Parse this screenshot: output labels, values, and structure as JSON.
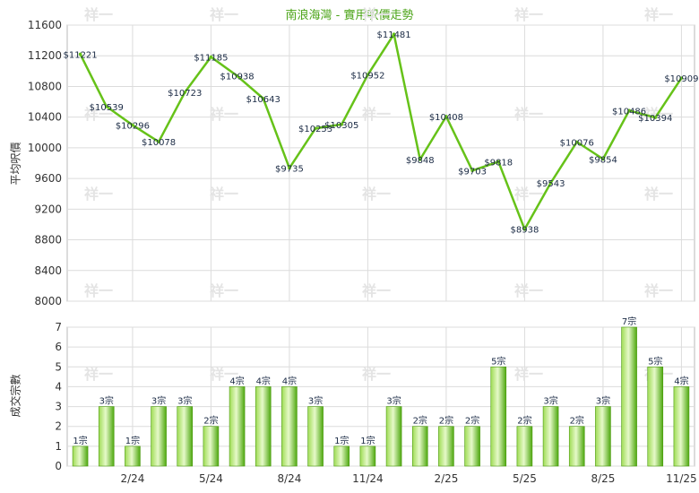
{
  "title": "南浪海灣 - 實用呎價走勢",
  "watermark": "祥一",
  "chart_data": [
    {
      "type": "line",
      "ylabel": "平均呎價",
      "ylim": [
        8000,
        11600
      ],
      "yticks": [
        8000,
        8400,
        8800,
        9200,
        9600,
        10000,
        10400,
        10800,
        11200,
        11600
      ],
      "grid": true,
      "color": "#66c219",
      "values": [
        11221,
        10539,
        10296,
        10078,
        10723,
        11185,
        10938,
        10643,
        9735,
        10253,
        10305,
        10952,
        11481,
        9848,
        10408,
        9703,
        9818,
        8938,
        9543,
        10076,
        9854,
        10486,
        10394,
        10909
      ],
      "labels": [
        "$11221",
        "$10539",
        "$10296",
        "$10078",
        "$10723",
        "$11185",
        "$10938",
        "$10643",
        "$9735",
        "$10253",
        "$10305",
        "$10952",
        "$11481",
        "$9848",
        "$10408",
        "$9703",
        "$9818",
        "$8938",
        "$9543",
        "$10076",
        "$9854",
        "$10486",
        "$10394",
        "$10909"
      ]
    },
    {
      "type": "bar",
      "ylabel": "成交宗數",
      "ylim": [
        0,
        7
      ],
      "yticks": [
        0,
        1,
        2,
        3,
        4,
        5,
        6,
        7
      ],
      "grid": true,
      "color": "#66c219",
      "values": [
        1,
        3,
        1,
        3,
        3,
        2,
        4,
        4,
        4,
        3,
        1,
        1,
        3,
        2,
        2,
        2,
        5,
        2,
        3,
        2,
        3,
        7,
        5,
        4
      ],
      "labels": [
        "1宗",
        "3宗",
        "1宗",
        "3宗",
        "3宗",
        "2宗",
        "4宗",
        "4宗",
        "4宗",
        "3宗",
        "1宗",
        "1宗",
        "3宗",
        "2宗",
        "2宗",
        "2宗",
        "5宗",
        "2宗",
        "3宗",
        "2宗",
        "3宗",
        "7宗",
        "5宗",
        "4宗"
      ],
      "xticks": [
        {
          "index": 2,
          "label": "2/24"
        },
        {
          "index": 5,
          "label": "5/24"
        },
        {
          "index": 8,
          "label": "8/24"
        },
        {
          "index": 11,
          "label": "11/24"
        },
        {
          "index": 14,
          "label": "2/25"
        },
        {
          "index": 17,
          "label": "5/25"
        },
        {
          "index": 20,
          "label": "8/25"
        },
        {
          "index": 23,
          "label": "11/25"
        }
      ]
    }
  ]
}
